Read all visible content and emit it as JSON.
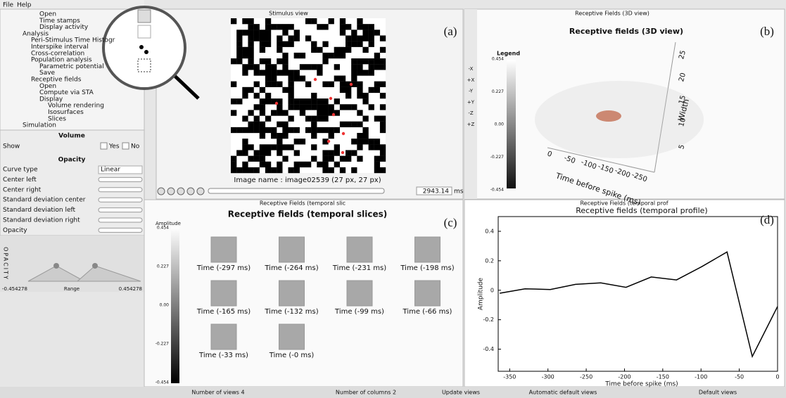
{
  "menu": [
    "File",
    "Help"
  ],
  "tree": [
    "Open",
    "Time stamps",
    "Display activity",
    "Analysis",
    "Peri-Stimulus Time Histogr",
    "Interspike interval",
    "Cross-correlation",
    "Population analysis",
    "Parametric potential",
    "Save",
    "Receptive fields",
    "Open",
    "Compute via STA",
    "Display",
    "Volume rendering",
    "Isosurfaces",
    "Slices",
    "Simulation"
  ],
  "properties": {
    "volume_header": "Volume",
    "show_label": "Show",
    "yes": "Yes",
    "no": "No",
    "opacity_header": "Opacity",
    "rows": [
      "Curve type",
      "Center left",
      "Center right",
      "Standard deviation center",
      "Standard deviation left",
      "Standard deviation right",
      "Opacity"
    ],
    "curve_value": "Linear",
    "opacity_axis": "OPACITY",
    "range_min": "-0.454278",
    "range_label": "Range",
    "range_max": "0.454278"
  },
  "stimulus": {
    "title_bar": "Stimulus view",
    "letter": "(a)",
    "image_name": "Image name : image02539 (27 px, 27 px)",
    "time": "2943.14",
    "unit": "ms"
  },
  "view3d": {
    "title_bar": "Receptive Fields (3D view)",
    "heading": "Receptive fields (3D view)",
    "letter": "(b)",
    "legend": "Legend",
    "legend_ticks": [
      "0.454",
      "0.227",
      "0.00",
      "-0.227",
      "-0.454"
    ],
    "time_ticks": [
      "0",
      "-50",
      "-100",
      "-150",
      "-200",
      "-250"
    ],
    "time_label": "Time before spike (ms)",
    "width_ticks": [
      "25",
      "20",
      "15",
      "10",
      "5"
    ],
    "width_label": "Width",
    "toolbar": [
      "-X",
      "+X",
      "-Y",
      "+Y",
      "-Z",
      "+Z"
    ]
  },
  "slices": {
    "title_bar": "Receptive Fields (temporal slic",
    "heading": "Receptive fields (temporal slices)",
    "letter": "(c)",
    "amplitude": "Amplitude",
    "scale_ticks": [
      "0.454",
      "0.227",
      "0.00",
      "-0.227",
      "-0.454"
    ],
    "labels": [
      "Time (-297 ms)",
      "Time (-264 ms)",
      "Time (-231 ms)",
      "Time (-198 ms)",
      "Time (-165 ms)",
      "Time (-132 ms)",
      "Time (-99 ms)",
      "Time (-66 ms)",
      "Time (-33 ms)",
      "Time (-0 ms)"
    ]
  },
  "profile": {
    "title_bar": "Receptive Fields (temporal prof",
    "letter": "(d)"
  },
  "chart_data": {
    "type": "line",
    "title": "Receptive fields (temporal profile)",
    "x_label": "Time before spike (ms)",
    "y_label": "Amplitude",
    "color": "#000000",
    "x": [
      -363,
      -330,
      -297,
      -264,
      -231,
      -198,
      -165,
      -132,
      -99,
      -66,
      -33,
      0
    ],
    "values": [
      -0.02,
      0.01,
      0.005,
      0.04,
      0.05,
      0.02,
      0.09,
      0.07,
      0.16,
      0.26,
      -0.45,
      -0.11
    ],
    "xlim": [
      -365,
      0
    ],
    "ylim": [
      -0.55,
      0.5
    ],
    "xticks": [
      -350,
      -300,
      -250,
      -200,
      -150,
      -100,
      -50,
      0
    ],
    "yticks": [
      -0.4,
      -0.2,
      0,
      0.2,
      0.4
    ]
  },
  "footer": [
    "Number of views 4",
    "Number of columns 2",
    "Update views",
    "Automatic default views",
    "Default views"
  ]
}
